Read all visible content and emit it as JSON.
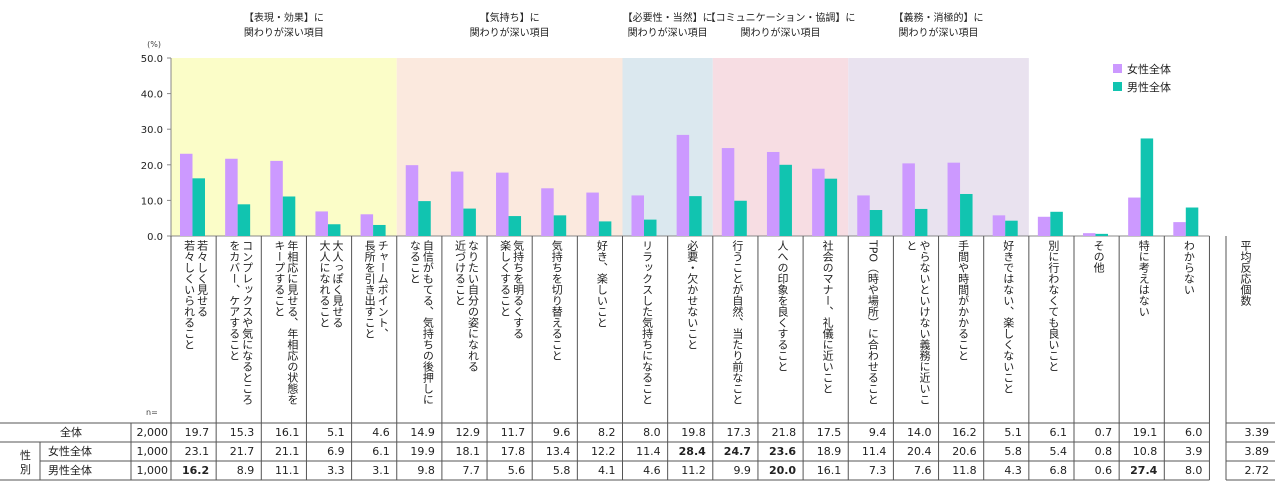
{
  "chart_data": {
    "type": "bar",
    "ylabel": "(%)",
    "ylim": [
      0,
      50
    ],
    "yticks": [
      "0.0",
      "10.0",
      "20.0",
      "30.0",
      "40.0",
      "50.0"
    ],
    "legend_position": "top-right",
    "groups": [
      {
        "title1": "【表現・効果】に",
        "title2": "関わりが深い項目",
        "color": "#fbfdc8",
        "count": 5
      },
      {
        "title1": "【気持ち】に",
        "title2": "関わりが深い項目",
        "color": "#fbe9de",
        "count": 5
      },
      {
        "title1": "【必要性・当然】に",
        "title2": "関わりが深い項目",
        "color": "#dbe8ef",
        "count": 2
      },
      {
        "title1": "【コミュニケーション・協調】に",
        "title2": "関わりが深い項目",
        "color": "#f7dde3",
        "count": 3
      },
      {
        "title1": "【義務・消極的】に",
        "title2": "関わりが深い項目",
        "color": "#e9e2ef",
        "count": 4
      }
    ],
    "categories": [
      "若々しく見せる\n若々しくいられること",
      "コンプレックスや気になるところ\nをカバー、ケアすること",
      "年相応に見せる、年相応の状態を\nキープすること",
      "大人っぽく見せる\n大人になれること",
      "チャームポイント、\n長所を引き出すこと",
      "自信がもてる、気持ちの後押しに\nなること",
      "なりたい自分の姿になれる\n近づけること",
      "気持ちを明るくする\n楽しくすること",
      "気持ちを切り替えること",
      "好き、楽しいこと",
      "リラックスした気持ちになること",
      "必要・欠かせないこと",
      "行うことが自然、当たり前なこと",
      "人への印象を良くすること",
      "社会のマナー、礼儀に近いこと",
      "TPO（時や場所）に合わせること",
      "やらないといけない義務に近いこ\nと",
      "手間や時間がかかること",
      "好きではない、楽しくないこと",
      "別に行わなくても良いこと",
      "その他",
      "特に考えはない",
      "わからない"
    ],
    "series": [
      {
        "name": "女性全体",
        "color": "#cc99ff",
        "values": [
          23.1,
          21.7,
          21.1,
          6.9,
          6.1,
          19.9,
          18.1,
          17.8,
          13.4,
          12.2,
          11.4,
          28.4,
          24.7,
          23.6,
          18.9,
          11.4,
          20.4,
          20.6,
          5.8,
          5.4,
          0.8,
          10.8,
          3.9
        ]
      },
      {
        "name": "男性全体",
        "color": "#11c4b0",
        "values": [
          16.2,
          8.9,
          11.1,
          3.3,
          3.1,
          9.8,
          7.7,
          5.6,
          5.8,
          4.1,
          4.6,
          11.2,
          9.9,
          20.0,
          16.1,
          7.3,
          7.6,
          11.8,
          4.3,
          6.8,
          0.6,
          27.4,
          8.0
        ]
      }
    ],
    "n_label": "n=",
    "avg_label": "平均反応個数",
    "gender_label": "性別",
    "table": {
      "rows": [
        {
          "label": "全体",
          "n": "2,000",
          "values": [
            "19.7",
            "15.3",
            "16.1",
            "5.1",
            "4.6",
            "14.9",
            "12.9",
            "11.7",
            "9.6",
            "8.2",
            "8.0",
            "19.8",
            "17.3",
            "21.8",
            "17.5",
            "9.4",
            "14.0",
            "16.2",
            "5.1",
            "6.1",
            "0.7",
            "19.1",
            "6.0"
          ],
          "bold": [],
          "avg": "3.39"
        },
        {
          "label": "女性全体",
          "n": "1,000",
          "values": [
            "23.1",
            "21.7",
            "21.1",
            "6.9",
            "6.1",
            "19.9",
            "18.1",
            "17.8",
            "13.4",
            "12.2",
            "11.4",
            "28.4",
            "24.7",
            "23.6",
            "18.9",
            "11.4",
            "20.4",
            "20.6",
            "5.8",
            "5.4",
            "0.8",
            "10.8",
            "3.9"
          ],
          "bold": [
            11,
            12,
            13
          ],
          "avg": "3.89"
        },
        {
          "label": "男性全体",
          "n": "1,000",
          "values": [
            "16.2",
            "8.9",
            "11.1",
            "3.3",
            "3.1",
            "9.8",
            "7.7",
            "5.6",
            "5.8",
            "4.1",
            "4.6",
            "11.2",
            "9.9",
            "20.0",
            "16.1",
            "7.3",
            "7.6",
            "11.8",
            "4.3",
            "6.8",
            "0.6",
            "27.4",
            "8.0"
          ],
          "bold": [
            0,
            13,
            21
          ],
          "avg": "2.72"
        }
      ]
    }
  }
}
